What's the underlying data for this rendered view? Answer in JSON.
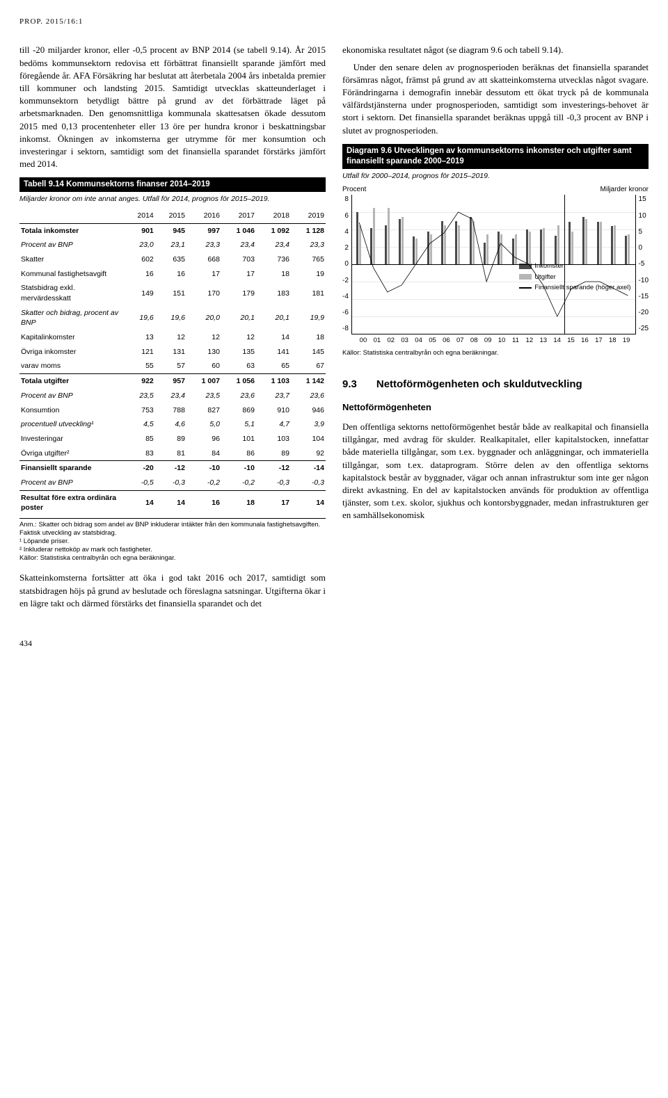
{
  "page_header": "PROP. 2015/16:1",
  "page_number": "434",
  "left": {
    "p1": "till -20 miljarder kronor, eller -0,5 procent av BNP 2014 (se tabell 9.14). År 2015 bedöms kommunsektorn redovisa ett förbättrat finansiellt sparande jämfört med föregående år. AFA Försäkring har beslutat att återbetala 2004 års inbetalda premier till kommuner och landsting 2015. Samtidigt utvecklas skatteunderlaget i kommunsektorn betydligt bättre på grund av det förbättrade läget på arbetsmarknaden. Den genomsnittliga kommunala skattesatsen ökade dessutom 2015 med 0,13 procentenheter eller 13 öre per hundra kronor i beskattningsbar inkomst. Ökningen av inkomsterna ger utrymme för mer konsumtion och investeringar i sektorn, samtidigt som det finansiella sparandet förstärks jämfört med 2014.",
    "table": {
      "title": "Tabell 9.14 Kommunsektorns finanser 2014–2019",
      "subtitle": "Miljarder kronor om inte annat anges. Utfall för 2014, prognos för 2015–2019.",
      "years": [
        "2014",
        "2015",
        "2016",
        "2017",
        "2018",
        "2019"
      ],
      "rows": [
        {
          "label": "Totala inkomster",
          "vals": [
            "901",
            "945",
            "997",
            "1 046",
            "1 092",
            "1 128"
          ],
          "cls": "bold section-top"
        },
        {
          "label": "Procent av BNP",
          "vals": [
            "23,0",
            "23,1",
            "23,3",
            "23,4",
            "23,4",
            "23,3"
          ],
          "cls": "italic"
        },
        {
          "label": "Skatter",
          "vals": [
            "602",
            "635",
            "668",
            "703",
            "736",
            "765"
          ],
          "cls": ""
        },
        {
          "label": "Kommunal fastighetsavgift",
          "vals": [
            "16",
            "16",
            "17",
            "17",
            "18",
            "19"
          ],
          "cls": ""
        },
        {
          "label": "Statsbidrag exkl. mervärdesskatt",
          "vals": [
            "149",
            "151",
            "170",
            "179",
            "183",
            "181"
          ],
          "cls": ""
        },
        {
          "label": "Skatter och bidrag, procent av BNP",
          "vals": [
            "19,6",
            "19,6",
            "20,0",
            "20,1",
            "20,1",
            "19,9"
          ],
          "cls": "italic"
        },
        {
          "label": "Kapitalinkomster",
          "vals": [
            "13",
            "12",
            "12",
            "12",
            "14",
            "18"
          ],
          "cls": ""
        },
        {
          "label": "Övriga inkomster",
          "vals": [
            "121",
            "131",
            "130",
            "135",
            "141",
            "145"
          ],
          "cls": ""
        },
        {
          "label": "varav moms",
          "vals": [
            "55",
            "57",
            "60",
            "63",
            "65",
            "67"
          ],
          "cls": ""
        },
        {
          "label": "Totala utgifter",
          "vals": [
            "922",
            "957",
            "1 007",
            "1 056",
            "1 103",
            "1 142"
          ],
          "cls": "bold section-top"
        },
        {
          "label": "Procent av BNP",
          "vals": [
            "23,5",
            "23,4",
            "23,5",
            "23,6",
            "23,7",
            "23,6"
          ],
          "cls": "italic"
        },
        {
          "label": "Konsumtion",
          "vals": [
            "753",
            "788",
            "827",
            "869",
            "910",
            "946"
          ],
          "cls": ""
        },
        {
          "label": "procentuell utveckling¹",
          "vals": [
            "4,5",
            "4,6",
            "5,0",
            "5,1",
            "4,7",
            "3,9"
          ],
          "cls": "italic"
        },
        {
          "label": "Investeringar",
          "vals": [
            "85",
            "89",
            "96",
            "101",
            "103",
            "104"
          ],
          "cls": ""
        },
        {
          "label": "Övriga utgifter²",
          "vals": [
            "83",
            "81",
            "84",
            "86",
            "89",
            "92"
          ],
          "cls": ""
        },
        {
          "label": "Finansiellt sparande",
          "vals": [
            "-20",
            "-12",
            "-10",
            "-10",
            "-12",
            "-14"
          ],
          "cls": "bold section-top"
        },
        {
          "label": "Procent av BNP",
          "vals": [
            "-0,5",
            "-0,3",
            "-0,2",
            "-0,2",
            "-0,3",
            "-0,3"
          ],
          "cls": "italic"
        },
        {
          "label": "Resultat före extra ordinära poster",
          "vals": [
            "14",
            "14",
            "16",
            "18",
            "17",
            "14"
          ],
          "cls": "bold section-top"
        }
      ],
      "note": "Anm.: Skatter och bidrag som andel av BNP inkluderar intäkter från den kommunala fastighetsavgiften. Faktisk utveckling av statsbidrag.\n¹ Löpande priser.\n² Inkluderar nettoköp av mark och fastigheter.\nKällor: Statistiska centralbyrån och egna beräkningar."
    },
    "p2": "Skatteinkomsterna fortsätter att öka i god takt 2016 och 2017, samtidigt som statsbidragen höjs på grund av beslutade och föreslagna satsningar. Utgifterna ökar i en lägre takt och därmed förstärks det finansiella sparandet och det"
  },
  "right": {
    "p1": "ekonomiska resultatet något (se diagram 9.6 och tabell 9.14).",
    "p2": "Under den senare delen av prognosperioden beräknas det finansiella sparandet försämras något, främst på grund av att skatteinkomsterna utvecklas något svagare. Förändringarna i demografin innebär dessutom ett ökat tryck på de kommunala välfärdstjänsterna under prognosperioden, samtidigt som investerings-behovet är stort i sektorn. Det finansiella sparandet beräknas uppgå till -0,3 procent av BNP i slutet av prognosperioden.",
    "diagram": {
      "title": "Diagram 9.6 Utvecklingen av kommunsektorns inkomster och utgifter samt finansiellt sparande 2000–2019",
      "subtitle": "Utfall för 2000–2014, prognos för 2015–2019.",
      "left_label": "Procent",
      "right_label": "Miljarder kronor",
      "left_ticks": [
        "8",
        "6",
        "4",
        "2",
        "0",
        "-2",
        "-4",
        "-6",
        "-8"
      ],
      "right_ticks": [
        "15",
        "10",
        "5",
        "0",
        "-5",
        "-10",
        "-15",
        "-20",
        "-25"
      ],
      "x_labels": [
        "00",
        "01",
        "02",
        "03",
        "04",
        "05",
        "06",
        "07",
        "08",
        "09",
        "10",
        "11",
        "12",
        "13",
        "14",
        "15",
        "16",
        "17",
        "18",
        "19"
      ],
      "legend": {
        "inkomster": {
          "label": "Inkomster",
          "color": "#000000",
          "type": "line"
        },
        "utgifter": {
          "label": "Utgifter",
          "color": "#9a9a9a",
          "type": "line"
        },
        "sparande": {
          "label": "Finansiellt sparande (höger axel)",
          "color": "#000000",
          "type": "line"
        }
      },
      "colors": {
        "bar_dark": "#4a4a4a",
        "bar_light": "#b5b5b5",
        "line_sparande": "#000000",
        "grid": "#e8e8e8",
        "forecast_divider": "#000000"
      },
      "bars": {
        "inkomster_pct": [
          6.0,
          4.2,
          4.5,
          5.2,
          3.2,
          3.8,
          5.0,
          5.0,
          5.5,
          2.5,
          3.8,
          3.0,
          4.0,
          4.0,
          3.3,
          4.9,
          5.5,
          4.9,
          4.4,
          3.3
        ],
        "utgifter_pct": [
          4.5,
          6.5,
          6.5,
          5.5,
          3.0,
          3.5,
          4.5,
          4.5,
          5.0,
          3.5,
          3.5,
          3.5,
          3.8,
          4.2,
          4.5,
          3.8,
          5.2,
          4.9,
          4.5,
          3.5
        ]
      },
      "sparande_right_axis": [
        7,
        -6,
        -13,
        -11,
        -5,
        1,
        4,
        10,
        8,
        -10,
        1,
        -3,
        -5,
        -11,
        -20,
        -12,
        -10,
        -10,
        -12,
        -14
      ],
      "ylim_left": [
        -8,
        8
      ],
      "ylim_right": [
        -25,
        15
      ],
      "source": "Källor: Statistiska centralbyrån och egna beräkningar."
    },
    "section_num": "9.3",
    "section_title": "Nettoförmögenheten och skuldutveckling",
    "subhead": "Nettoförmögenheten",
    "p3": "Den offentliga sektorns nettoförmögenhet består både av realkapital och finansiella tillgångar, med avdrag för skulder. Realkapitalet, eller kapitalstocken, innefattar både materiella tillgångar, som t.ex. byggnader och anläggningar, och immateriella tillgångar, som t.ex. dataprogram. Större delen av den offentliga sektorns kapitalstock består av byggnader, vägar och annan infrastruktur som inte ger någon direkt avkastning. En del av kapitalstocken används för produktion av offentliga tjänster, som t.ex. skolor, sjukhus och kontorsbyggnader, medan infrastrukturen ger en samhällsekonomisk"
  }
}
